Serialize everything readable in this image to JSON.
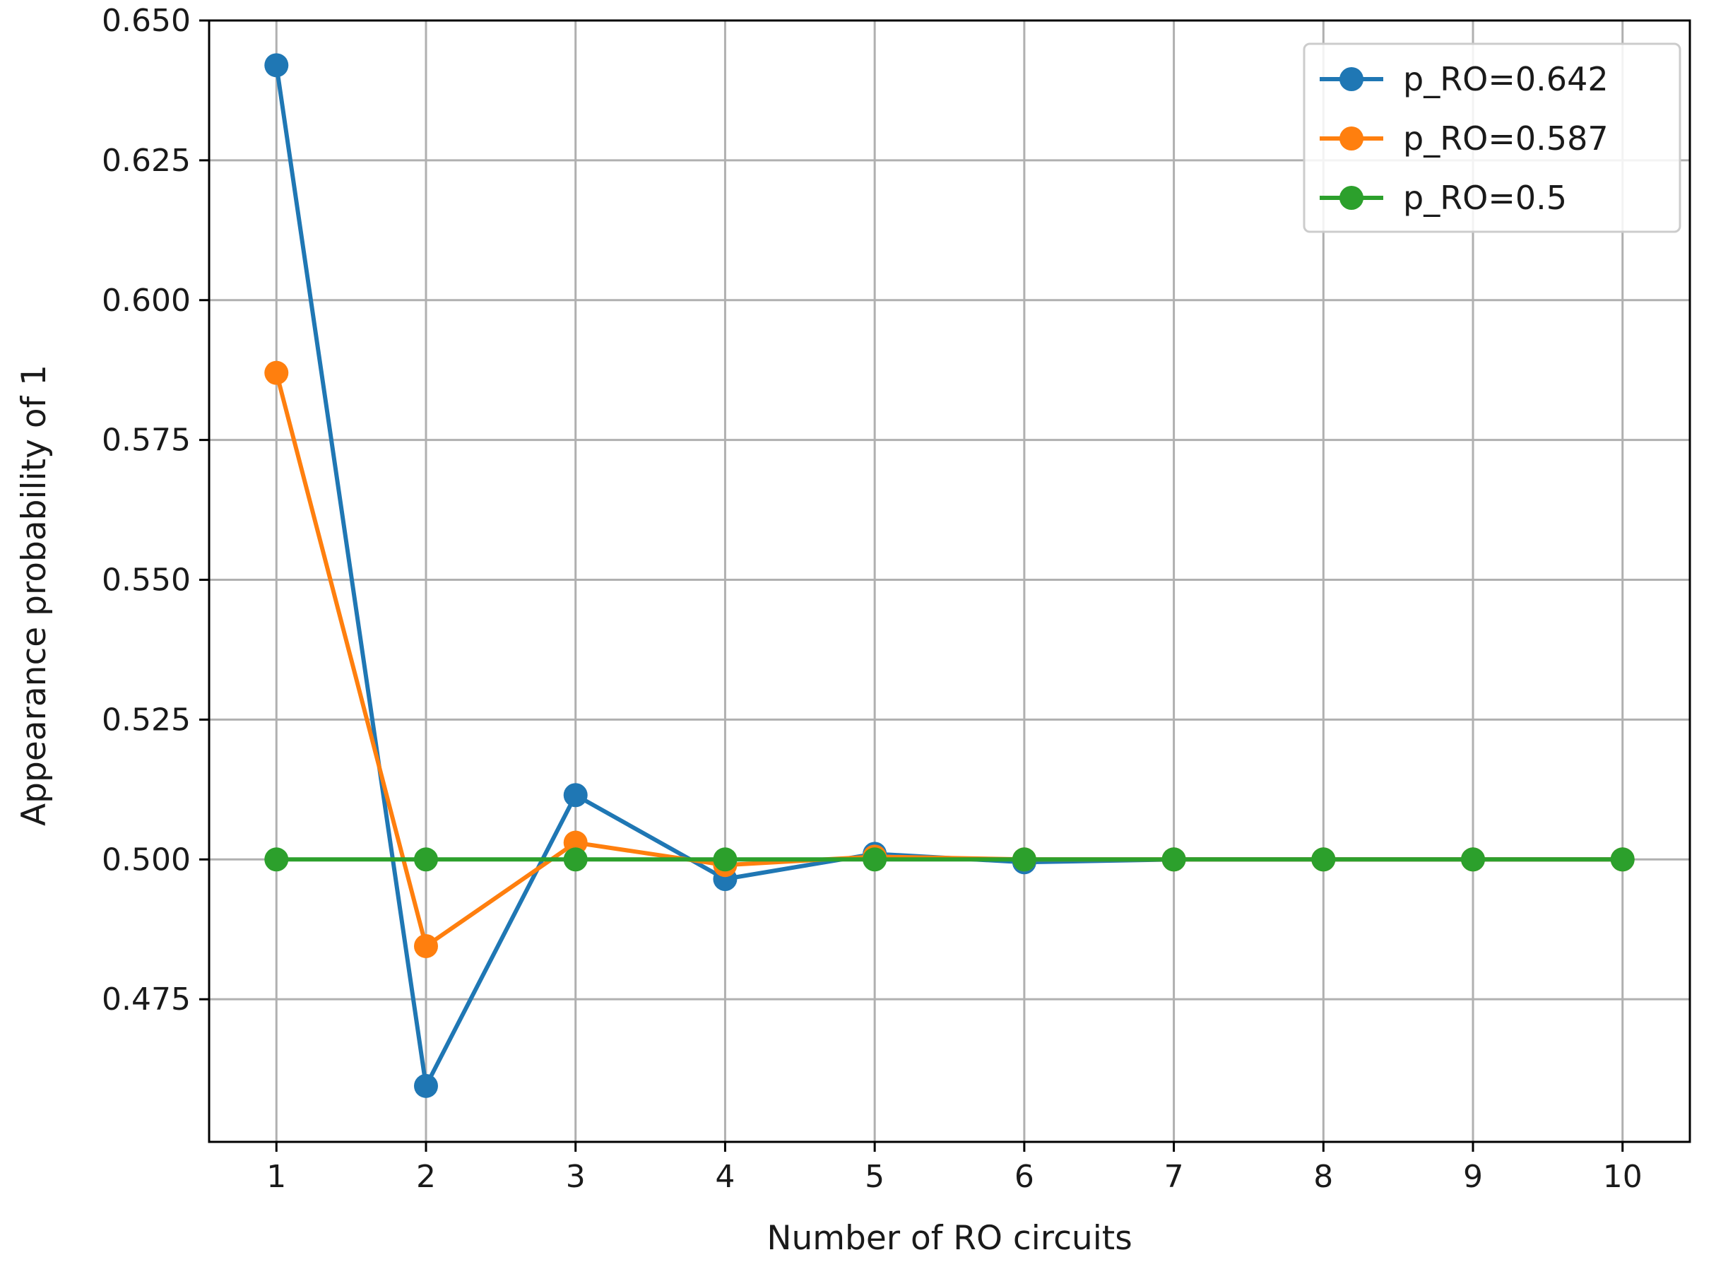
{
  "chart_data": {
    "type": "line",
    "title": "",
    "xlabel": "Number of RO circuits",
    "ylabel": "Appearance probability of 1",
    "x": [
      1,
      2,
      3,
      4,
      5,
      6,
      7,
      8,
      9,
      10
    ],
    "xticks": [
      "1",
      "2",
      "3",
      "4",
      "5",
      "6",
      "7",
      "8",
      "9",
      "10"
    ],
    "yticks": [
      0.475,
      0.5,
      0.525,
      0.55,
      0.575,
      0.6,
      0.625,
      0.65
    ],
    "ytick_labels": [
      "0.475",
      "0.500",
      "0.525",
      "0.550",
      "0.575",
      "0.600",
      "0.625",
      "0.650"
    ],
    "xlim": [
      0.55,
      10.45
    ],
    "ylim": [
      0.4495,
      0.65
    ],
    "grid": true,
    "legend_position": "top-right",
    "series": [
      {
        "name": "p_RO=0.642",
        "color": "#1f77b4",
        "values": [
          0.642,
          0.4595,
          0.5115,
          0.4965,
          0.501,
          0.4995,
          0.5,
          0.5,
          0.5,
          0.5
        ]
      },
      {
        "name": "p_RO=0.587",
        "color": "#ff7f0e",
        "values": [
          0.587,
          0.4845,
          0.503,
          0.499,
          0.5005,
          0.5,
          0.5,
          0.5,
          0.5,
          0.5
        ]
      },
      {
        "name": "p_RO=0.5",
        "color": "#2ca02c",
        "values": [
          0.5,
          0.5,
          0.5,
          0.5,
          0.5,
          0.5,
          0.5,
          0.5,
          0.5,
          0.5
        ]
      }
    ]
  }
}
